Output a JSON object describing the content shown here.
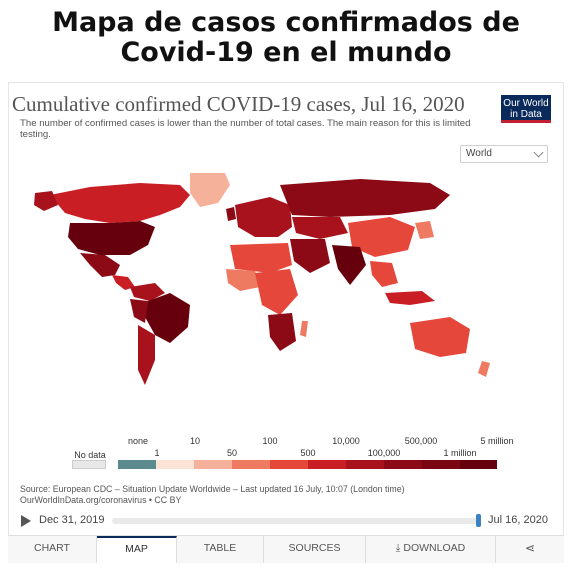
{
  "headline": "Mapa de casos confirmados de Covid-19 en el mundo",
  "chart": {
    "title": "Cumulative confirmed COVID-19 cases, Jul 16, 2020",
    "subtitle": "The number of confirmed cases is lower than the number of total cases. The main reason for this is limited testing.",
    "logo": {
      "line1": "Our World",
      "line2": "in Data"
    },
    "region_select": "World"
  },
  "legend": {
    "no_data": "No data",
    "labels_top": [
      "none",
      "10",
      "100",
      "10,000",
      "500,000",
      "5 million"
    ],
    "labels_bottom": [
      "1",
      "50",
      "500",
      "100,000",
      "1 million"
    ],
    "colors": [
      "#5b8a8f",
      "#fbe3d6",
      "#f6b19a",
      "#ef7a62",
      "#e5473a",
      "#c81e24",
      "#a8121c",
      "#8b0a16",
      "#67000d"
    ],
    "no_data_color": "#e8e8e8"
  },
  "source": {
    "line1": "Source: European CDC – Situation Update Worldwide – Last updated 16 July, 10:07 (London time)",
    "line2": "OurWorldInData.org/coronavirus • CC BY"
  },
  "timeline": {
    "start": "Dec 31, 2019",
    "end": "Jul 16, 2020"
  },
  "tabs": [
    {
      "label": "CHART"
    },
    {
      "label": "MAP"
    },
    {
      "label": "TABLE"
    },
    {
      "label": "SOURCES"
    },
    {
      "label": "DOWNLOAD"
    }
  ],
  "map": {
    "ocean_color": "#ffffff",
    "highlight_colors": {
      "very_high": "#67000d",
      "high": "#8b0a16",
      "mid": "#a8121c",
      "upper": "#c81e24",
      "medium": "#e5473a",
      "low": "#ef7a62",
      "greenland": "#f6b19a"
    }
  }
}
